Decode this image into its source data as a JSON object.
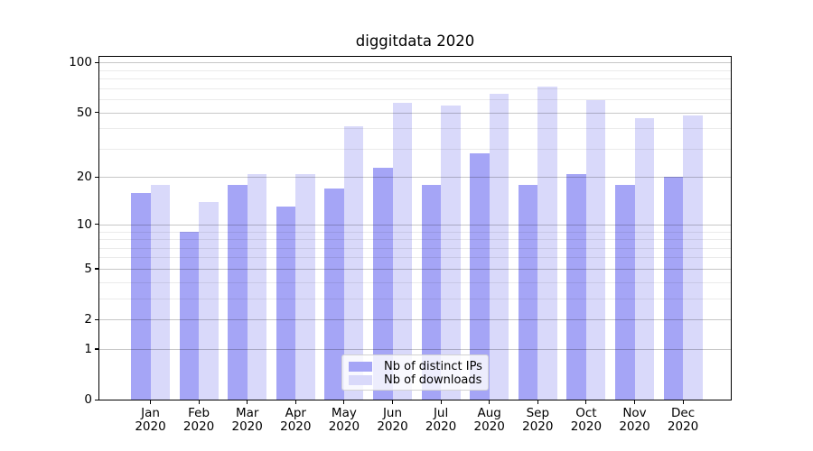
{
  "chart_data": {
    "type": "bar",
    "title": "diggitdata 2020",
    "categories": [
      "Jan",
      "Feb",
      "Mar",
      "Apr",
      "May",
      "Jun",
      "Jul",
      "Aug",
      "Sep",
      "Oct",
      "Nov",
      "Dec"
    ],
    "x_tick_year": "2020",
    "series": [
      {
        "name": "Nb of distinct IPs",
        "color": "#a5a5f6",
        "values": [
          16,
          9,
          18,
          13,
          17,
          23,
          18,
          28,
          18,
          21,
          18,
          20
        ]
      },
      {
        "name": "Nb of downloads",
        "color": "#d9d9fa",
        "values": [
          18,
          14,
          21,
          21,
          41,
          57,
          55,
          65,
          72,
          59,
          46,
          48
        ]
      }
    ],
    "yscale": "log1p",
    "ylim": [
      0,
      108
    ],
    "yticks": [
      100,
      50,
      20,
      10,
      5,
      2,
      1,
      0
    ],
    "minor_yticks": [
      3,
      4,
      6,
      7,
      8,
      9,
      30,
      40,
      60,
      70,
      80,
      90
    ],
    "grid": true,
    "legend_position": "lower-center-inside",
    "xlabel": "",
    "ylabel": ""
  }
}
